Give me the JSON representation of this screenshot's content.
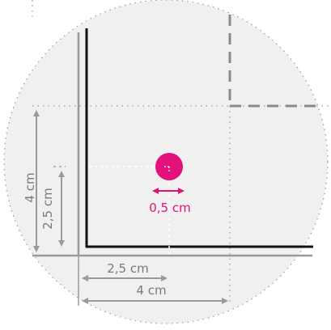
{
  "labels": {
    "hole_diameter": "0,5 cm",
    "horizontal_hole_offset": "2,5 cm",
    "horizontal_width": "4 cm",
    "vertical_hole_offset": "2,5 cm",
    "vertical_height": "4 cm"
  },
  "colors": {
    "circle_fill": "#f0f0f0",
    "hole": "#e2127a",
    "dimension": "#9a9a9a",
    "edge": "#111111",
    "dashed_panel": "#8a8a8a",
    "dotted_guide": "#9a9a9a"
  }
}
